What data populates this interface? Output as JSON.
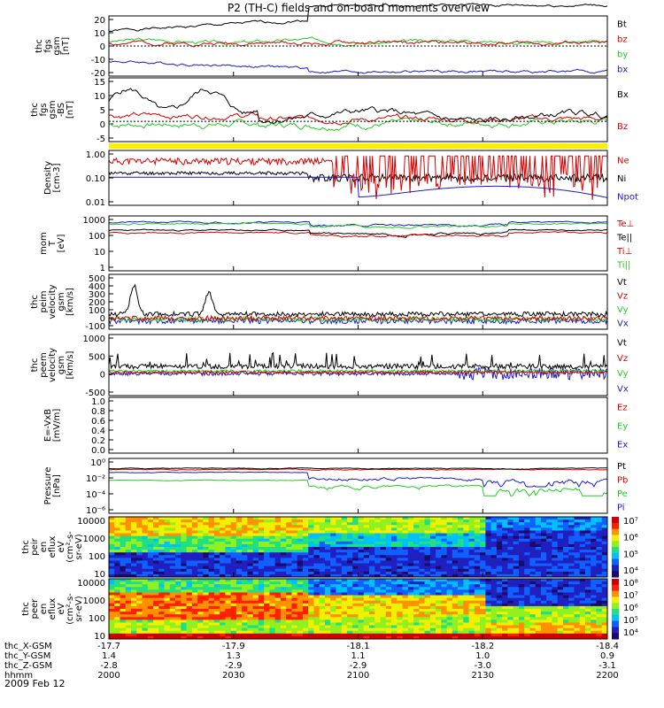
{
  "title": "P2 (TH-C) fields and on-board moments overview",
  "date": "2009 Feb 12",
  "colors": {
    "black": "#000000",
    "red": "#d40000",
    "green": "#22cc22",
    "blue": "#1a1acc",
    "yellow": "#ffee00"
  },
  "time": {
    "ticks": [
      "2000",
      "2030",
      "2100",
      "2130",
      "2200"
    ]
  },
  "ephemeris": [
    {
      "label": "thc_X-GSM",
      "values": [
        "-17.7",
        "-17.9",
        "-18.1",
        "-18.2",
        "-18.4"
      ]
    },
    {
      "label": "thc_Y-GSM",
      "values": [
        "1.4",
        "1.3",
        "1.1",
        "1.0",
        "0.9"
      ]
    },
    {
      "label": "thc_Z-GSM",
      "values": [
        "-2.8",
        "-2.9",
        "-2.9",
        "-3.0",
        "-3.1"
      ]
    },
    {
      "label": "hhmm",
      "values": [
        "2000",
        "2030",
        "2100",
        "2130",
        "2200"
      ]
    }
  ],
  "chart_data": [
    {
      "type": "line",
      "ylabel": [
        "thc",
        "fgs",
        "gsm",
        "[nT]"
      ],
      "ylim": [
        -20,
        20
      ],
      "yscale": "linear",
      "ytick_labels": [
        "20",
        "10",
        "0",
        "-10",
        "-20"
      ],
      "legend": [
        {
          "name": "Bt",
          "color": "black"
        },
        {
          "name": "bz",
          "color": "red"
        },
        {
          "name": "by",
          "color": "green"
        },
        {
          "name": "bx",
          "color": "blue"
        }
      ]
    },
    {
      "type": "line",
      "ylabel": [
        "thc",
        "fgs",
        "gsm",
        "-BS",
        "[nT]"
      ],
      "ylim": [
        -7,
        15
      ],
      "yscale": "linear",
      "ytick_labels": [
        "15",
        "10",
        "5",
        "0",
        "-5"
      ],
      "legend": [
        {
          "name": "Bx",
          "color": "black"
        },
        {
          "name": "Bz",
          "color": "red"
        }
      ]
    },
    {
      "type": "line",
      "ylabel": [
        "Density",
        "[cm-3]"
      ],
      "ylim": [
        0.01,
        1.3
      ],
      "yscale": "log",
      "ytick_labels": [
        "1.00",
        "0.10",
        "0.01"
      ],
      "legend": [
        {
          "name": "Ne",
          "color": "red"
        },
        {
          "name": "Ni",
          "color": "black"
        },
        {
          "name": "Npot",
          "color": "blue"
        }
      ]
    },
    {
      "type": "line",
      "ylabel": [
        "mom",
        "T",
        "[eV]"
      ],
      "ylim": [
        1,
        10000
      ],
      "yscale": "log",
      "ytick_labels": [
        "1000",
        "100",
        "10",
        "1"
      ],
      "legend": [
        {
          "name": "Te⊥",
          "color": "red"
        },
        {
          "name": "Te||",
          "color": "black"
        },
        {
          "name": "Ti⊥",
          "color": "red"
        },
        {
          "name": "Ti||",
          "color": "green"
        }
      ]
    },
    {
      "type": "line",
      "ylabel": [
        "thc",
        "peim",
        "velocity",
        "gsm",
        "[km/s]"
      ],
      "ylim": [
        -100,
        500
      ],
      "yscale": "linear",
      "ytick_labels": [
        "500",
        "400",
        "300",
        "200",
        "100",
        "0",
        "-100"
      ],
      "legend": [
        {
          "name": "Vt",
          "color": "black"
        },
        {
          "name": "Vz",
          "color": "red"
        },
        {
          "name": "Vy",
          "color": "green"
        },
        {
          "name": "Vx",
          "color": "blue"
        }
      ]
    },
    {
      "type": "line",
      "ylabel": [
        "thc",
        "peem",
        "velocity",
        "gsm",
        "[km/s]"
      ],
      "ylim": [
        -1000,
        1500
      ],
      "yscale": "linear",
      "ytick_labels": [
        "1000",
        "500",
        "0",
        "-500"
      ],
      "legend": [
        {
          "name": "Vt",
          "color": "black"
        },
        {
          "name": "Vz",
          "color": "red"
        },
        {
          "name": "Vy",
          "color": "green"
        },
        {
          "name": "Vx",
          "color": "blue"
        }
      ]
    },
    {
      "type": "line",
      "ylabel": [
        "E=-VxB",
        "[mV/m]"
      ],
      "ylim": [
        0,
        1
      ],
      "yscale": "linear",
      "ytick_labels": [
        "1.0",
        "0.8",
        "0.6",
        "0.4",
        "0.2",
        "0.0"
      ],
      "legend": [
        {
          "name": "Ez",
          "color": "red"
        },
        {
          "name": "Ey",
          "color": "green"
        },
        {
          "name": "Ex",
          "color": "blue"
        }
      ]
    },
    {
      "type": "line",
      "ylabel": [
        "Pressure",
        "[nPa]"
      ],
      "ylim": [
        1e-06,
        1
      ],
      "yscale": "log",
      "ytick_labels": [
        "10⁰",
        "10⁻²",
        "10⁻⁴",
        "10⁻⁶"
      ],
      "legend": [
        {
          "name": "Pt",
          "color": "black"
        },
        {
          "name": "Pb",
          "color": "red"
        },
        {
          "name": "Pe",
          "color": "green"
        },
        {
          "name": "Pi",
          "color": "blue"
        }
      ]
    },
    {
      "type": "heatmap",
      "ylabel": [
        "thc",
        "peir",
        "en",
        "eflux",
        "eV",
        "(cm²-s-",
        "sr-eV)"
      ],
      "ylim": [
        10,
        20000
      ],
      "yscale": "log",
      "ytick_labels": [
        "10000",
        "1000",
        "100",
        "10"
      ],
      "colorbar_labels": [
        "10⁷",
        "10⁶",
        "10⁵",
        "10⁴"
      ]
    },
    {
      "type": "heatmap",
      "ylabel": [
        "thc",
        "peer",
        "en",
        "eflux",
        "eV",
        "(cm²-s-",
        "sr-eV)"
      ],
      "ylim": [
        10,
        20000
      ],
      "yscale": "log",
      "ytick_labels": [
        "10000",
        "1000",
        "100",
        "10"
      ],
      "colorbar_labels": [
        "10⁸",
        "10⁷",
        "10⁶",
        "10⁵",
        "10⁴"
      ]
    }
  ]
}
